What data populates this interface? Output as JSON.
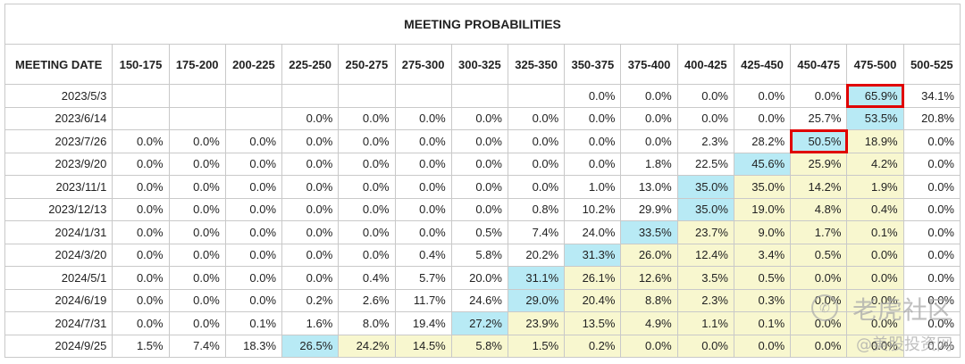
{
  "title": "MEETING PROBABILITIES",
  "columns": [
    "MEETING DATE",
    "150-175",
    "175-200",
    "200-225",
    "225-250",
    "250-275",
    "275-300",
    "300-325",
    "325-350",
    "350-375",
    "375-400",
    "400-425",
    "425-450",
    "450-475",
    "475-500",
    "500-525"
  ],
  "colors": {
    "blue": "#b8eaf5",
    "yellow": "#f8f7cf",
    "highlight": "#e00000"
  },
  "rows": [
    {
      "date": "2023/5/3",
      "cells": [
        "",
        "",
        "",
        "",
        "",
        "",
        "",
        "",
        "0.0%",
        "0.0%",
        "0.0%",
        "0.0%",
        "0.0%",
        "65.9%",
        "34.1%"
      ]
    },
    {
      "date": "2023/6/14",
      "cells": [
        "",
        "",
        "",
        "0.0%",
        "0.0%",
        "0.0%",
        "0.0%",
        "0.0%",
        "0.0%",
        "0.0%",
        "0.0%",
        "0.0%",
        "25.7%",
        "53.5%",
        "20.8%"
      ]
    },
    {
      "date": "2023/7/26",
      "cells": [
        "0.0%",
        "0.0%",
        "0.0%",
        "0.0%",
        "0.0%",
        "0.0%",
        "0.0%",
        "0.0%",
        "0.0%",
        "0.0%",
        "2.3%",
        "28.2%",
        "50.5%",
        "18.9%",
        "0.0%"
      ]
    },
    {
      "date": "2023/9/20",
      "cells": [
        "0.0%",
        "0.0%",
        "0.0%",
        "0.0%",
        "0.0%",
        "0.0%",
        "0.0%",
        "0.0%",
        "0.0%",
        "1.8%",
        "22.5%",
        "45.6%",
        "25.9%",
        "4.2%",
        "0.0%"
      ]
    },
    {
      "date": "2023/11/1",
      "cells": [
        "0.0%",
        "0.0%",
        "0.0%",
        "0.0%",
        "0.0%",
        "0.0%",
        "0.0%",
        "0.0%",
        "1.0%",
        "13.0%",
        "35.0%",
        "35.0%",
        "14.2%",
        "1.9%",
        "0.0%"
      ]
    },
    {
      "date": "2023/12/13",
      "cells": [
        "0.0%",
        "0.0%",
        "0.0%",
        "0.0%",
        "0.0%",
        "0.0%",
        "0.0%",
        "0.8%",
        "10.2%",
        "29.9%",
        "35.0%",
        "19.0%",
        "4.8%",
        "0.4%",
        "0.0%"
      ]
    },
    {
      "date": "2024/1/31",
      "cells": [
        "0.0%",
        "0.0%",
        "0.0%",
        "0.0%",
        "0.0%",
        "0.0%",
        "0.5%",
        "7.4%",
        "24.0%",
        "33.5%",
        "23.7%",
        "9.0%",
        "1.7%",
        "0.1%",
        "0.0%"
      ]
    },
    {
      "date": "2024/3/20",
      "cells": [
        "0.0%",
        "0.0%",
        "0.0%",
        "0.0%",
        "0.0%",
        "0.4%",
        "5.8%",
        "20.2%",
        "31.3%",
        "26.0%",
        "12.4%",
        "3.4%",
        "0.5%",
        "0.0%",
        "0.0%"
      ]
    },
    {
      "date": "2024/5/1",
      "cells": [
        "0.0%",
        "0.0%",
        "0.0%",
        "0.0%",
        "0.4%",
        "5.7%",
        "20.0%",
        "31.1%",
        "26.1%",
        "12.6%",
        "3.5%",
        "0.5%",
        "0.0%",
        "0.0%",
        "0.0%"
      ]
    },
    {
      "date": "2024/6/19",
      "cells": [
        "0.0%",
        "0.0%",
        "0.0%",
        "0.2%",
        "2.6%",
        "11.7%",
        "24.6%",
        "29.0%",
        "20.4%",
        "8.8%",
        "2.3%",
        "0.3%",
        "0.0%",
        "0.0%",
        "0.0%"
      ]
    },
    {
      "date": "2024/7/31",
      "cells": [
        "0.0%",
        "0.0%",
        "0.1%",
        "1.6%",
        "8.0%",
        "19.4%",
        "27.2%",
        "23.9%",
        "13.5%",
        "4.9%",
        "1.1%",
        "0.1%",
        "0.0%",
        "0.0%",
        "0.0%"
      ]
    },
    {
      "date": "2024/9/25",
      "cells": [
        "1.5%",
        "7.4%",
        "18.3%",
        "26.5%",
        "24.2%",
        "14.5%",
        "5.8%",
        "1.5%",
        "0.2%",
        "0.0%",
        "0.0%",
        "0.0%",
        "0.0%",
        "0.0%",
        "0.0%"
      ]
    }
  ],
  "watermark": {
    "line1": "老虎社区",
    "line2": "@美股投资网",
    "logo": "✆"
  }
}
